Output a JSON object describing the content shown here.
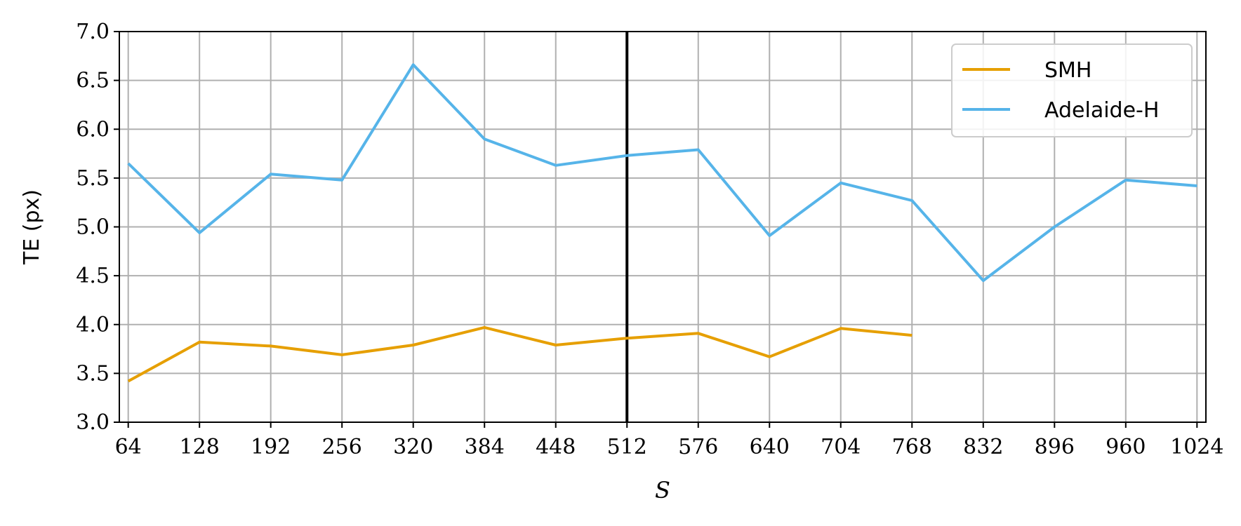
{
  "chart_data": {
    "type": "line",
    "xlabel": "S",
    "ylabel": "TE (px)",
    "xlim": [
      56,
      1032
    ],
    "ylim": [
      3.0,
      7.0
    ],
    "xticks": [
      64,
      128,
      192,
      256,
      320,
      384,
      448,
      512,
      576,
      640,
      704,
      768,
      832,
      896,
      960,
      1024
    ],
    "xtick_labels": [
      "64",
      "128",
      "192",
      "256",
      "320",
      "384",
      "448",
      "512",
      "576",
      "640",
      "704",
      "768",
      "832",
      "896",
      "960",
      "1024"
    ],
    "yticks": [
      3.0,
      3.5,
      4.0,
      4.5,
      5.0,
      5.5,
      6.0,
      6.5,
      7.0
    ],
    "ytick_labels": [
      "3.0",
      "3.5",
      "4.0",
      "4.5",
      "5.0",
      "5.5",
      "6.0",
      "6.5",
      "7.0"
    ],
    "grid": true,
    "legend_position": "top-right",
    "vertical_line_x": 512,
    "series": [
      {
        "name": "SMH",
        "color": "#E69F00",
        "x": [
          64,
          128,
          192,
          256,
          320,
          384,
          448,
          512,
          576,
          640,
          704,
          768
        ],
        "y": [
          3.42,
          3.82,
          3.78,
          3.69,
          3.79,
          3.97,
          3.79,
          3.86,
          3.91,
          3.67,
          3.96,
          3.89
        ]
      },
      {
        "name": "Adelaide-H",
        "color": "#56B4E9",
        "x": [
          64,
          128,
          192,
          256,
          320,
          384,
          448,
          512,
          576,
          640,
          704,
          768,
          832,
          896,
          960,
          1024
        ],
        "y": [
          5.65,
          4.94,
          5.54,
          5.48,
          6.66,
          5.9,
          5.63,
          5.73,
          5.79,
          4.91,
          5.45,
          5.27,
          4.45,
          5.0,
          5.48,
          5.42
        ]
      }
    ]
  }
}
